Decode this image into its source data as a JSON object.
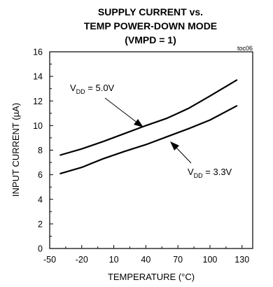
{
  "chart_data": {
    "type": "line",
    "title_lines": [
      "SUPPLY CURRENT vs.",
      "TEMP POWER-DOWN MODE",
      "(VMPD = 1)"
    ],
    "figure_id": "toc06",
    "xlabel": "TEMPERATURE (°C)",
    "ylabel": "INPUT CURRENT (µA)",
    "xlim": [
      -50,
      140
    ],
    "ylim": [
      0,
      16
    ],
    "xticks": [
      -50,
      -20,
      10,
      40,
      70,
      100,
      130
    ],
    "yticks": [
      0,
      2,
      4,
      6,
      8,
      10,
      12,
      14,
      16
    ],
    "grid": false,
    "series": [
      {
        "label_main": "V",
        "label_sub": "DD",
        "label_rest": " = 5.0V",
        "x": [
          -40,
          -20,
          0,
          20,
          40,
          60,
          80,
          100,
          125
        ],
        "y": [
          7.6,
          8.1,
          8.7,
          9.35,
          10.0,
          10.6,
          11.4,
          12.4,
          13.7
        ]
      },
      {
        "label_main": "V",
        "label_sub": "DD",
        "label_rest": " = 3.3V",
        "x": [
          -40,
          -20,
          0,
          20,
          40,
          60,
          80,
          100,
          125
        ],
        "y": [
          6.1,
          6.6,
          7.3,
          7.9,
          8.45,
          9.1,
          9.75,
          10.45,
          11.6
        ]
      }
    ]
  }
}
